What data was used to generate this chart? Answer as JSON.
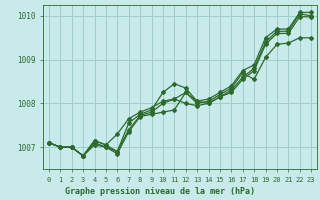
{
  "title": "Graphe pression niveau de la mer (hPa)",
  "background_color": "#c8eaea",
  "grid_color": "#a0cccc",
  "line_color": "#2d6a2d",
  "label_bg_color": "#c8eaea",
  "ylim": [
    1006.5,
    1010.25
  ],
  "xlim": [
    -0.5,
    23.5
  ],
  "yticks": [
    1007,
    1008,
    1009,
    1010
  ],
  "xticks": [
    0,
    1,
    2,
    3,
    4,
    5,
    6,
    7,
    8,
    9,
    10,
    11,
    12,
    13,
    14,
    15,
    16,
    17,
    18,
    19,
    20,
    21,
    22,
    23
  ],
  "series": [
    [
      1007.1,
      1007.0,
      1007.0,
      1006.8,
      1007.1,
      1007.0,
      1006.85,
      1007.35,
      1007.7,
      1007.75,
      1007.8,
      1007.85,
      1008.25,
      1008.05,
      1008.0,
      1008.15,
      1008.3,
      1008.6,
      1008.8,
      1009.4,
      1009.65,
      1009.65,
      1010.05,
      1010.0
    ],
    [
      1007.1,
      1007.0,
      1007.0,
      1006.8,
      1007.15,
      1007.05,
      1007.3,
      1007.65,
      1007.8,
      1007.9,
      1008.05,
      1008.1,
      1008.25,
      1008.0,
      1008.05,
      1008.2,
      1008.35,
      1008.7,
      1008.55,
      1009.05,
      1009.35,
      1009.38,
      1009.5,
      1009.5
    ],
    [
      1007.1,
      1007.0,
      1007.0,
      1006.8,
      1007.15,
      1007.05,
      1006.9,
      1007.55,
      1007.75,
      1007.85,
      1008.25,
      1008.45,
      1008.35,
      1008.05,
      1008.1,
      1008.25,
      1008.4,
      1008.75,
      1008.88,
      1009.5,
      1009.7,
      1009.7,
      1010.08,
      1010.08
    ],
    [
      1007.1,
      1007.0,
      1007.0,
      1006.8,
      1007.05,
      1007.0,
      1006.9,
      1007.4,
      1007.72,
      1007.8,
      1008.0,
      1008.1,
      1008.0,
      1007.95,
      1008.0,
      1008.15,
      1008.25,
      1008.55,
      1008.75,
      1009.35,
      1009.6,
      1009.6,
      1009.98,
      1009.98
    ]
  ]
}
